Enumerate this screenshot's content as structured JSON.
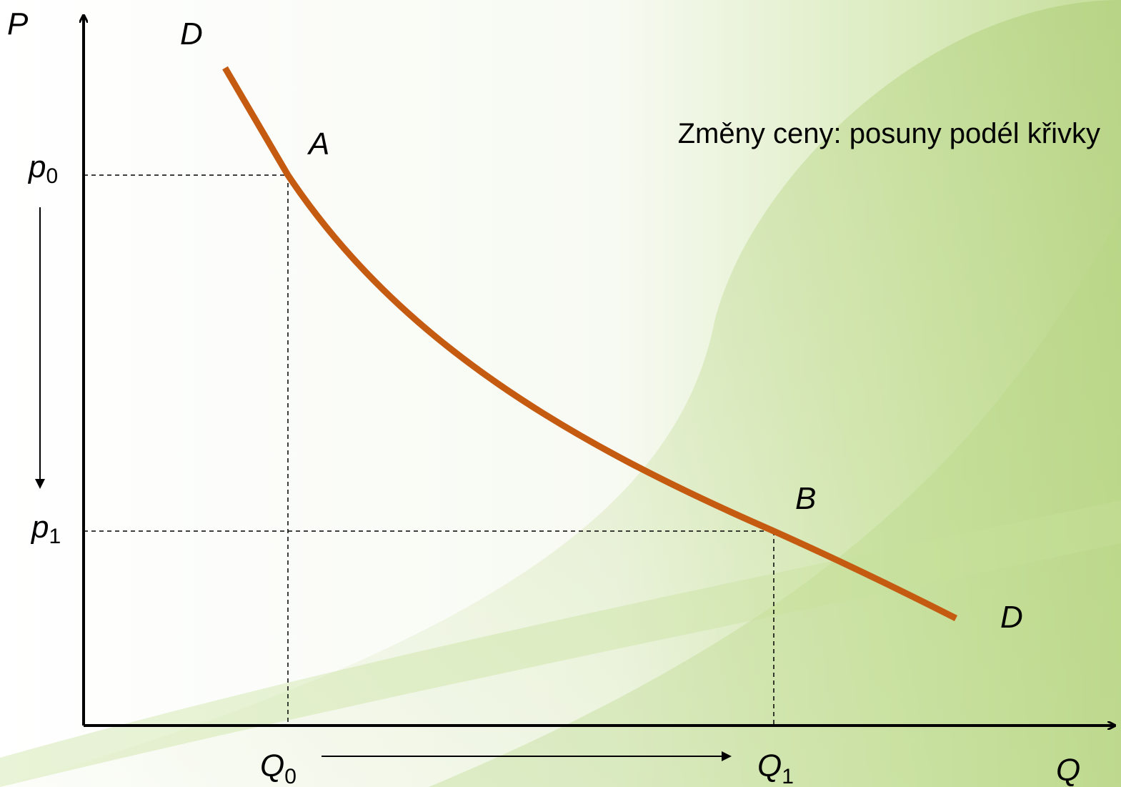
{
  "axes": {
    "y_label": "P",
    "x_label": "Q"
  },
  "curve": {
    "label_top": "D",
    "label_bottom": "D"
  },
  "points": [
    {
      "label": "A",
      "price": {
        "main": "p",
        "sub": "0"
      },
      "quantity": {
        "main": "Q",
        "sub": "0"
      }
    },
    {
      "label": "B",
      "price": {
        "main": "p",
        "sub": "1"
      },
      "quantity": {
        "main": "Q",
        "sub": "1"
      }
    }
  ],
  "caption": "Změny ceny: posuny podél křivky"
}
